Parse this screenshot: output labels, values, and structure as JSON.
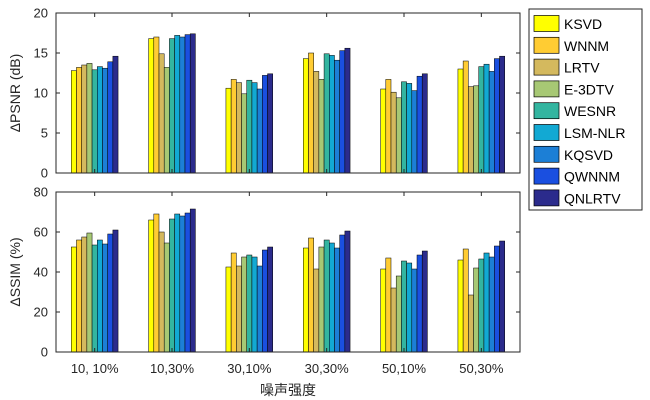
{
  "chart_data": [
    {
      "type": "bar",
      "ylabel": "ΔPSNR (dB)",
      "ylim": [
        0,
        20
      ],
      "yticks": [
        "0",
        "5",
        "10",
        "15",
        "20"
      ],
      "categories": [
        "10, 10%",
        "10,30%",
        "30,10%",
        "30,30%",
        "50,10%",
        "50,30%"
      ],
      "series": [
        {
          "name": "KSVD",
          "color": "#ffff00",
          "values": [
            12.8,
            16.8,
            10.6,
            14.3,
            10.5,
            13.0
          ]
        },
        {
          "name": "WNNM",
          "color": "#ffcc33",
          "values": [
            13.2,
            17.0,
            11.7,
            15.0,
            11.7,
            14.0
          ]
        },
        {
          "name": "LRTV",
          "color": "#d4b95e",
          "values": [
            13.5,
            14.9,
            11.3,
            12.7,
            10.1,
            10.8
          ]
        },
        {
          "name": "E-3DTV",
          "color": "#a7c874",
          "values": [
            13.7,
            13.2,
            9.9,
            11.7,
            9.4,
            10.9
          ]
        },
        {
          "name": "WESNR",
          "color": "#33b5a0",
          "values": [
            12.9,
            16.8,
            11.6,
            14.9,
            11.4,
            13.3
          ]
        },
        {
          "name": "LSM-NLR",
          "color": "#12a9d3",
          "values": [
            13.3,
            17.2,
            11.3,
            14.7,
            11.2,
            13.6
          ]
        },
        {
          "name": "KQSVD",
          "color": "#1c7fd6",
          "values": [
            13.1,
            17.0,
            10.5,
            14.1,
            10.3,
            12.7
          ]
        },
        {
          "name": "QWNNM",
          "color": "#1a4fe0",
          "values": [
            13.9,
            17.3,
            12.2,
            15.3,
            12.1,
            14.3
          ]
        },
        {
          "name": "QNLRTV",
          "color": "#2b2b8c",
          "values": [
            14.6,
            17.4,
            12.4,
            15.6,
            12.4,
            14.6
          ]
        }
      ]
    },
    {
      "type": "bar",
      "ylabel": "ΔSSIM (%)",
      "xlabel": "噪声强度",
      "ylim": [
        0,
        80
      ],
      "yticks": [
        "0",
        "20",
        "40",
        "60",
        "80"
      ],
      "categories": [
        "10, 10%",
        "10,30%",
        "30,10%",
        "30,30%",
        "50,10%",
        "50,30%"
      ],
      "series": [
        {
          "name": "KSVD",
          "color": "#ffff00",
          "values": [
            52.5,
            66.0,
            42.5,
            52.0,
            41.5,
            46.0
          ]
        },
        {
          "name": "WNNM",
          "color": "#ffcc33",
          "values": [
            56.0,
            69.0,
            49.5,
            57.0,
            47.0,
            51.5
          ]
        },
        {
          "name": "LRTV",
          "color": "#d4b95e",
          "values": [
            57.5,
            60.0,
            43.0,
            41.5,
            32.0,
            28.5
          ]
        },
        {
          "name": "E-3DTV",
          "color": "#a7c874",
          "values": [
            59.5,
            54.5,
            47.5,
            52.5,
            38.0,
            42.0
          ]
        },
        {
          "name": "WESNR",
          "color": "#33b5a0",
          "values": [
            53.5,
            66.5,
            48.5,
            56.0,
            45.5,
            46.5
          ]
        },
        {
          "name": "LSM-NLR",
          "color": "#12a9d3",
          "values": [
            56.0,
            69.0,
            47.5,
            54.5,
            44.5,
            49.5
          ]
        },
        {
          "name": "KQSVD",
          "color": "#1c7fd6",
          "values": [
            54.0,
            68.0,
            43.0,
            52.0,
            41.5,
            47.5
          ]
        },
        {
          "name": "QWNNM",
          "color": "#1a4fe0",
          "values": [
            59.0,
            69.5,
            51.0,
            58.5,
            48.5,
            53.0
          ]
        },
        {
          "name": "QNLRTV",
          "color": "#2b2b8c",
          "values": [
            61.0,
            71.5,
            52.5,
            60.5,
            50.5,
            55.5
          ]
        }
      ]
    }
  ]
}
